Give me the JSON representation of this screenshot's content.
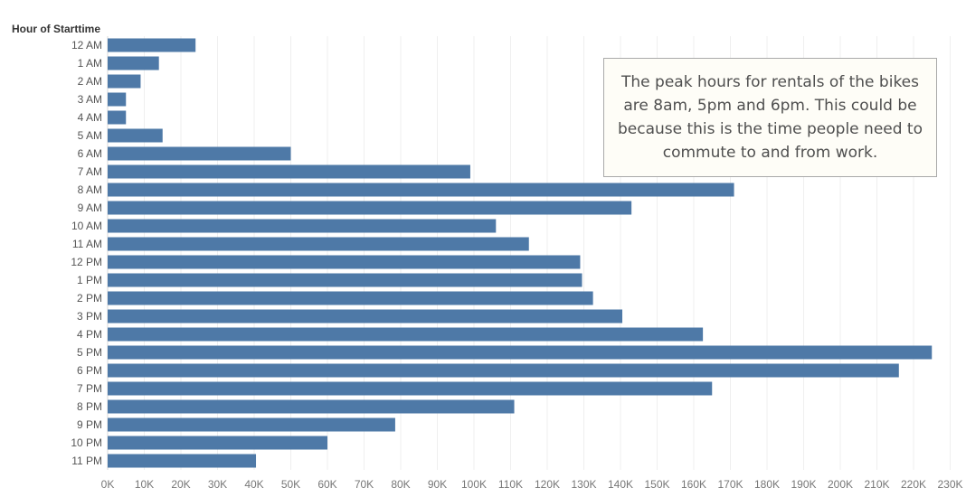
{
  "chart_data": {
    "type": "bar",
    "orientation": "horizontal",
    "row_header": "Hour of Starttime",
    "categories": [
      "12 AM",
      "1 AM",
      "2 AM",
      "3 AM",
      "4 AM",
      "5 AM",
      "6 AM",
      "7 AM",
      "8 AM",
      "9 AM",
      "10 AM",
      "11 AM",
      "12 PM",
      "1 PM",
      "2 PM",
      "3 PM",
      "4 PM",
      "5 PM",
      "6 PM",
      "7 PM",
      "8 PM",
      "9 PM",
      "10 PM",
      "11 PM"
    ],
    "values": [
      24000,
      14000,
      9000,
      5000,
      5000,
      15000,
      50000,
      99000,
      171000,
      143000,
      106000,
      115000,
      129000,
      129500,
      132500,
      140500,
      162500,
      225000,
      216000,
      165000,
      111000,
      78500,
      60000,
      40500
    ],
    "x_ticks": [
      "0K",
      "10K",
      "20K",
      "30K",
      "40K",
      "50K",
      "60K",
      "70K",
      "80K",
      "90K",
      "100K",
      "110K",
      "120K",
      "130K",
      "140K",
      "150K",
      "160K",
      "170K",
      "180K",
      "190K",
      "200K",
      "210K",
      "220K",
      "230K"
    ],
    "xlim": [
      0,
      233000
    ],
    "grid": "vertical",
    "bar_color": "#4e79a7",
    "annotation": "The peak hours for rentals of the bikes are 8am, 5pm and 6pm. This could be because this is the time people need to commute to and from work."
  }
}
